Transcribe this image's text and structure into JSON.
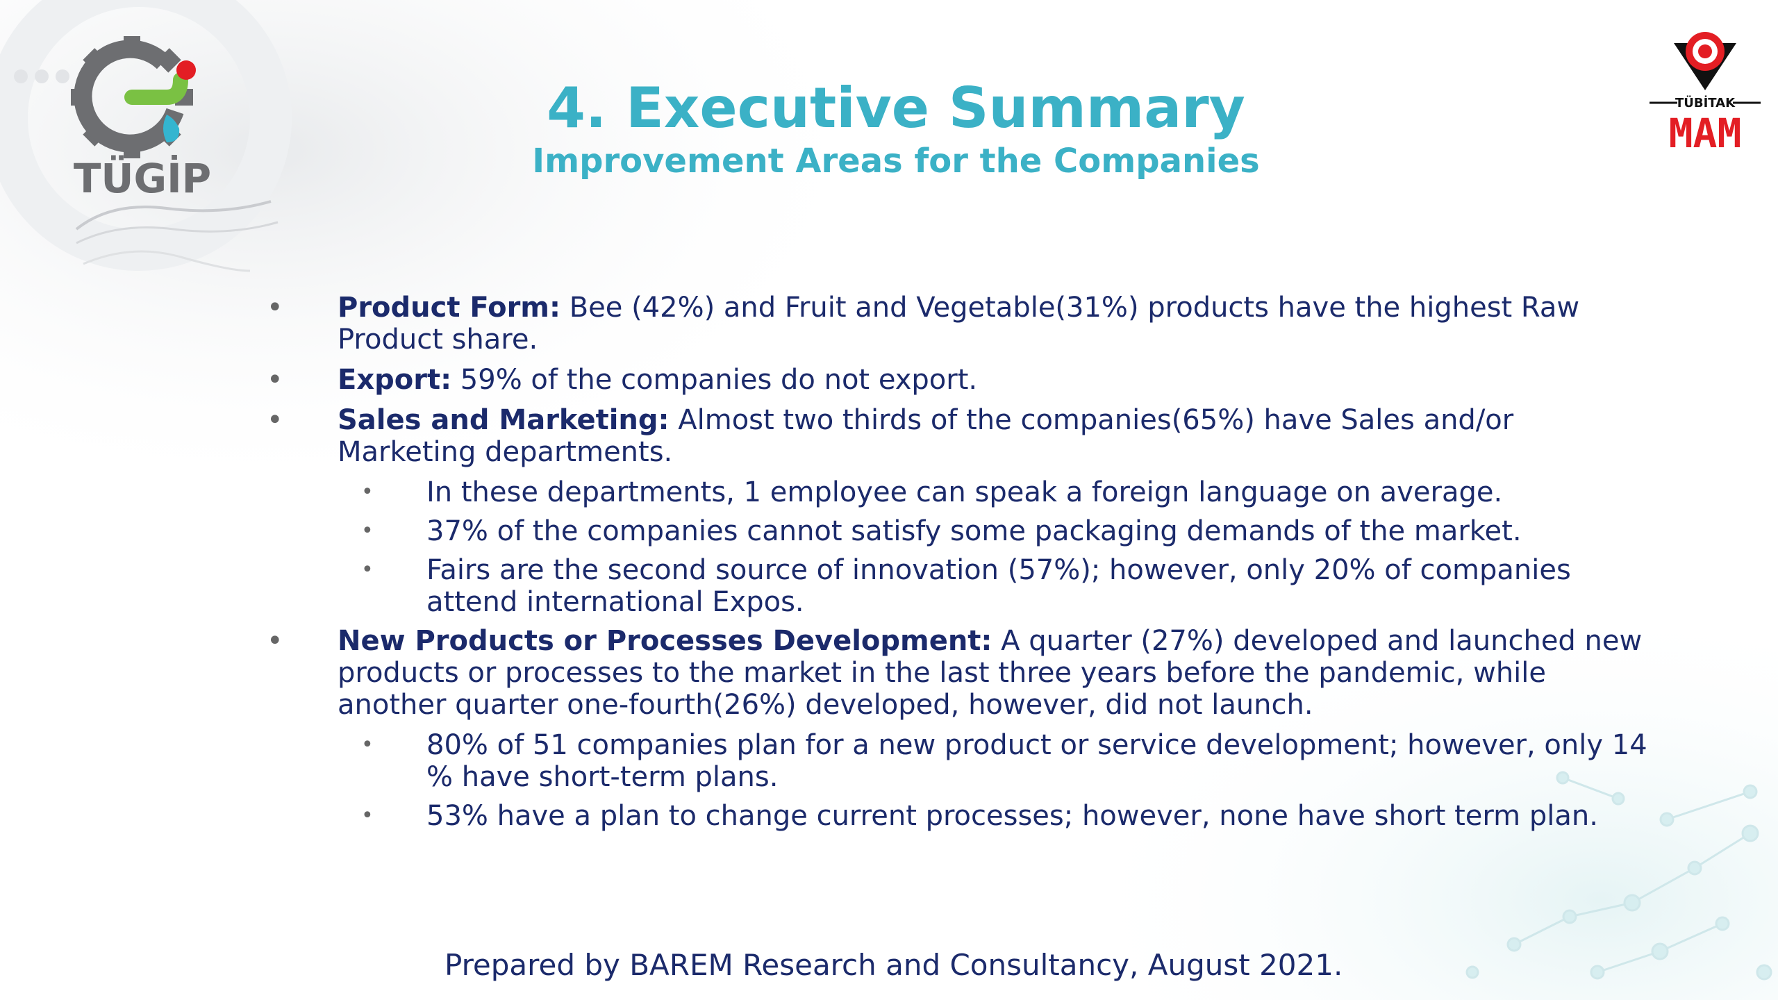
{
  "header": {
    "title": "4. Executive Summary",
    "subtitle": "Improvement Areas for the Companies"
  },
  "logos": {
    "left": {
      "text": "TÜGİP",
      "icon": "tugip-gear-logo"
    },
    "right": {
      "text_top": "TÜBİTAK",
      "text_bottom": "MAM",
      "icon": "tubitak-logo"
    }
  },
  "colors": {
    "title": "#3bb1c6",
    "body": "#1b2a6b",
    "logo_red": "#e31e24",
    "logo_gray": "#6d6e71",
    "logo_green": "#7ac143",
    "logo_cyan": "#34b5d0"
  },
  "bullets": [
    {
      "label": "Product Form:",
      "text": " Bee (42%) and Fruit and Vegetable(31%) products have the highest Raw Product share.",
      "sub": []
    },
    {
      "label": "Export:",
      "text": " 59% of the companies do not export.",
      "sub": []
    },
    {
      "label": "Sales and Marketing:",
      "text": " Almost two thirds of the companies(65%) have Sales and/or Marketing departments.",
      "sub": [
        "In these departments, 1 employee can speak a foreign language on average.",
        "37% of the companies cannot satisfy some packaging demands of the market.",
        "Fairs are the second source of innovation (57%); however, only 20% of companies attend international Expos."
      ]
    },
    {
      "label": "New Products or Processes Development:",
      "text": " A quarter (27%) developed and launched new products or processes to the market in the last three years before the pandemic, while another quarter one-fourth(26%) developed, however, did not launch.",
      "sub": [
        "80% of 51 companies plan for a new product or service development; however, only 14 % have short-term plans.",
        "53% have a plan to change current processes; however, none have short term plan."
      ]
    }
  ],
  "bullet_glyph": "•",
  "footer": "Prepared by BAREM Research and Consultancy, August 2021."
}
